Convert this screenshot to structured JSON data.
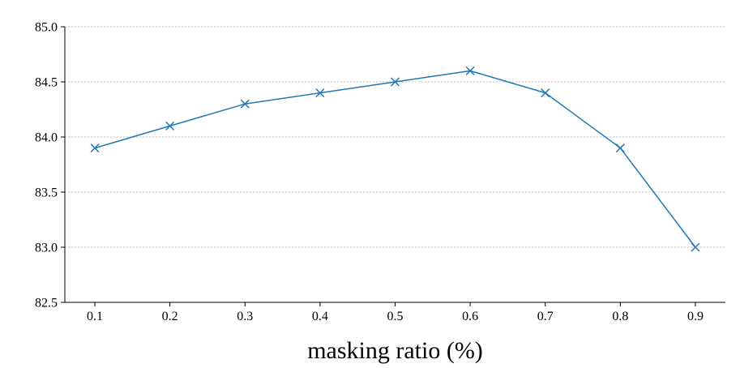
{
  "chart_data": {
    "type": "line",
    "title": "",
    "xlabel": "masking ratio (%)",
    "ylabel": "",
    "x": [
      0.1,
      0.2,
      0.3,
      0.4,
      0.5,
      0.6,
      0.7,
      0.8,
      0.9
    ],
    "x_tick_labels": [
      "0.1",
      "0.2",
      "0.3",
      "0.4",
      "0.5",
      "0.6",
      "0.7",
      "0.8",
      "0.9"
    ],
    "y_ticks": [
      82.5,
      83.0,
      83.5,
      84.0,
      84.5,
      85.0
    ],
    "y_tick_labels": [
      "82.5",
      "83.0",
      "83.5",
      "84.0",
      "84.5",
      "85.0"
    ],
    "ylim": [
      82.5,
      85.0
    ],
    "xlim": [
      0.06,
      0.94
    ],
    "grid": "horizontal-dashed",
    "marker": "x",
    "series": [
      {
        "values": [
          83.9,
          84.1,
          84.3,
          84.4,
          84.5,
          84.6,
          84.4,
          83.9,
          83.0
        ],
        "color": "#1f77b4"
      }
    ]
  }
}
